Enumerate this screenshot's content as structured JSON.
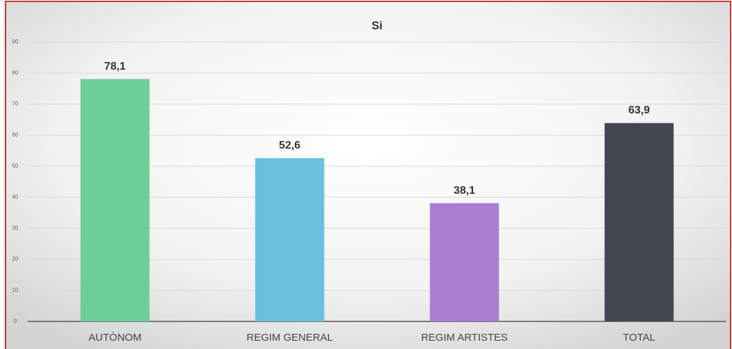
{
  "chart_data": {
    "type": "bar",
    "title": "Si",
    "categories": [
      "AUTÒNOM",
      "REGIM GENERAL",
      "REGIM ARTISTES",
      "TOTAL"
    ],
    "values": [
      78.1,
      52.6,
      38.1,
      63.9
    ],
    "value_labels": [
      "78,1",
      "52,6",
      "38,1",
      "63,9"
    ],
    "colors": [
      "#6dcf98",
      "#6bbfdf",
      "#a97dd2",
      "#42474f"
    ],
    "ylim": [
      0,
      90
    ],
    "yticks": [
      0,
      10,
      20,
      30,
      40,
      50,
      60,
      70,
      80,
      90
    ],
    "grid": true
  }
}
